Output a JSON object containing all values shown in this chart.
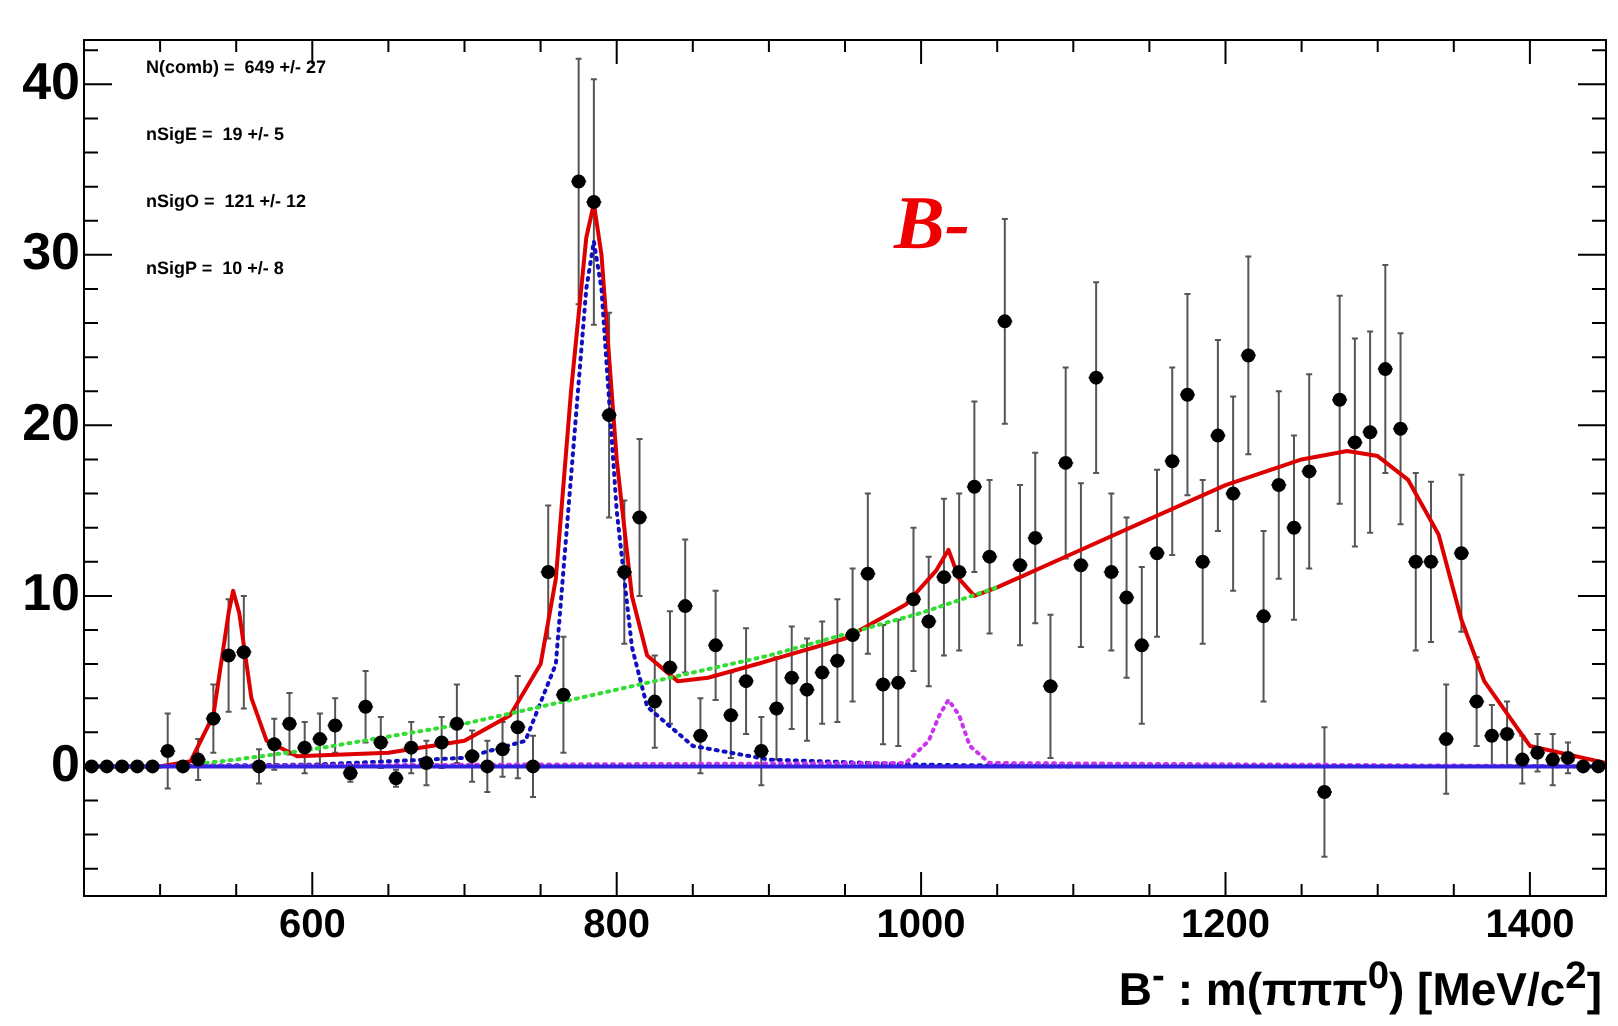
{
  "chart_data": {
    "type": "scatter",
    "xlabel": "B$^{-}$ : m(πππ$^{0}$) [MeV/c$^{2}$]",
    "annotations": [
      "N(comb) =  649 +/- 27",
      "nSigE =  19 +/- 5",
      "nSigO =  121 +/- 12",
      "nSigP =  10 +/- 8",
      "B-"
    ],
    "xlim": [
      450,
      1450
    ],
    "xticks": [
      {
        "value": 500,
        "label": null
      },
      {
        "value": 550,
        "label": null
      },
      600,
      {
        "value": 650,
        "label": null
      },
      {
        "value": 700,
        "label": null
      },
      {
        "value": 750,
        "label": null
      },
      800,
      {
        "value": 850,
        "label": null
      },
      {
        "value": 900,
        "label": null
      },
      {
        "value": 950,
        "label": null
      },
      1000,
      {
        "value": 1050,
        "label": null
      },
      {
        "value": 1100,
        "label": null
      },
      {
        "value": 1150,
        "label": null
      },
      1200,
      {
        "value": 1250,
        "label": null
      },
      {
        "value": 1300,
        "label": null
      },
      {
        "value": 1350,
        "label": null
      },
      1400
    ],
    "ylim": [
      -7.6,
      42.6
    ],
    "yticks": [
      {
        "value": -6,
        "label": null
      },
      {
        "value": -4,
        "label": null
      },
      {
        "value": -2,
        "label": null
      },
      0,
      {
        "value": 2,
        "label": null
      },
      {
        "value": 4,
        "label": null
      },
      {
        "value": 6,
        "label": null
      },
      {
        "value": 8,
        "label": null
      },
      10,
      {
        "value": 12,
        "label": null
      },
      {
        "value": 14,
        "label": null
      },
      {
        "value": 16,
        "label": null
      },
      {
        "value": 18,
        "label": null
      },
      20,
      {
        "value": 22,
        "label": null
      },
      {
        "value": 24,
        "label": null
      },
      {
        "value": 26,
        "label": null
      },
      {
        "value": 28,
        "label": null
      },
      30,
      {
        "value": 32,
        "label": null
      },
      {
        "value": 34,
        "label": null
      },
      {
        "value": 36,
        "label": null
      },
      {
        "value": 38,
        "label": null
      },
      40,
      {
        "value": 42,
        "label": null
      }
    ],
    "series": [
      {
        "type": "scatter",
        "color": "#000000",
        "marker": "circle",
        "x": [
          455,
          465,
          475,
          485,
          495,
          505,
          515,
          525,
          535,
          545,
          555,
          565,
          575,
          585,
          595,
          605,
          615,
          625,
          635,
          645,
          655,
          665,
          675,
          685,
          695,
          705,
          715,
          725,
          735,
          745,
          755,
          765,
          775,
          785,
          795,
          805,
          815,
          825,
          835,
          845,
          855,
          865,
          875,
          885,
          895,
          905,
          915,
          925,
          935,
          945,
          955,
          965,
          975,
          985,
          995,
          1005,
          1015,
          1025,
          1035,
          1045,
          1055,
          1065,
          1075,
          1085,
          1095,
          1105,
          1115,
          1125,
          1135,
          1145,
          1155,
          1165,
          1175,
          1185,
          1195,
          1205,
          1215,
          1225,
          1235,
          1245,
          1255,
          1265,
          1275,
          1285,
          1295,
          1305,
          1315,
          1325,
          1335,
          1345,
          1355,
          1365,
          1375,
          1385,
          1395,
          1405,
          1415,
          1425,
          1435,
          1445
        ],
        "values": [
          0,
          0,
          0,
          0,
          0,
          0.9,
          0,
          0.4,
          2.8,
          6.5,
          6.7,
          0,
          1.3,
          2.5,
          1.1,
          1.6,
          2.4,
          -0.4,
          3.5,
          1.4,
          -0.7,
          1.1,
          0.2,
          1.4,
          2.5,
          0.6,
          0,
          1.0,
          2.3,
          0,
          11.4,
          4.2,
          34.3,
          33.1,
          20.6,
          11.4,
          14.6,
          3.8,
          5.8,
          9.4,
          1.8,
          7.1,
          3.0,
          5.0,
          0.9,
          3.4,
          5.2,
          4.5,
          5.5,
          6.2,
          7.7,
          11.3,
          4.8,
          4.9,
          9.8,
          8.5,
          11.1,
          11.4,
          16.4,
          12.3,
          26.1,
          11.8,
          13.4,
          4.7,
          17.8,
          11.8,
          22.8,
          11.4,
          9.9,
          7.1,
          12.5,
          17.9,
          21.8,
          12.0,
          19.4,
          16.0,
          24.1,
          8.8,
          16.5,
          14.0,
          17.3,
          -1.5,
          21.5,
          19.0,
          19.6,
          23.3,
          19.8,
          12.0,
          12.0,
          1.6,
          12.5,
          3.8,
          1.8,
          1.9,
          0.4,
          0.8,
          0.4,
          0.5,
          0,
          0
        ],
        "errors": [
          null,
          null,
          null,
          null,
          null,
          2.2,
          null,
          1.2,
          2,
          3.3,
          3.3,
          1,
          1.5,
          1.8,
          1.5,
          1.5,
          1.6,
          0.5,
          2.1,
          1.5,
          0.5,
          1.5,
          1.3,
          1.5,
          2.3,
          1.5,
          1.5,
          1.6,
          3,
          1.8,
          3.9,
          3.4,
          7.2,
          7.2,
          6,
          4.2,
          4.6,
          2.7,
          3.3,
          3.9,
          2.2,
          3.2,
          2.5,
          3.1,
          2,
          3,
          3,
          3,
          3,
          3.6,
          3.9,
          4.7,
          3.5,
          3.7,
          4.2,
          3.8,
          4.6,
          4.6,
          5.0,
          4.5,
          6,
          4.7,
          5.0,
          4.2,
          5.6,
          4.8,
          5.6,
          4.6,
          4.7,
          4.6,
          4.9,
          5.5,
          5.9,
          4.8,
          5.6,
          5.7,
          5.8,
          5.0,
          5.5,
          5.4,
          5.7,
          3.8,
          6.1,
          6.1,
          5.9,
          6.1,
          5.6,
          5.2,
          4.7,
          3.2,
          4.6,
          2.6,
          1.8,
          1.9,
          1.4,
          1.1,
          1.5,
          0.9,
          null,
          null
        ],
        "xerrors": [
          5,
          5,
          5,
          5,
          5,
          5,
          5,
          5,
          5,
          5,
          5,
          5,
          5,
          5,
          5,
          5,
          5,
          5,
          5,
          5,
          5,
          5,
          5,
          5,
          5,
          5,
          5,
          5,
          5,
          5,
          5,
          5,
          5,
          5,
          5,
          5,
          5,
          5,
          5,
          5,
          5,
          5,
          5,
          5,
          5,
          5,
          5,
          5,
          5,
          5,
          5,
          5,
          5,
          5,
          5,
          5,
          5,
          5,
          5,
          5,
          5,
          5,
          5,
          5,
          5,
          5,
          5,
          5,
          5,
          5,
          5,
          5,
          5,
          5,
          5,
          5,
          5,
          5,
          5,
          5,
          5,
          5,
          5,
          5,
          5,
          5,
          5,
          5,
          5,
          5,
          5,
          5,
          5,
          5,
          5,
          5,
          5,
          5,
          5,
          5
        ]
      },
      {
        "type": "line",
        "color": "#3322dd",
        "line_style": "solid",
        "x": [
          450,
          1450
        ],
        "values": [
          0,
          0
        ]
      },
      {
        "type": "line",
        "color": "#cc33ee",
        "line_style": "dotted",
        "x": [
          450,
          990,
          1005,
          1012,
          1018,
          1025,
          1032,
          1045,
          1450
        ],
        "values": [
          0,
          0.2,
          1.5,
          3,
          3.9,
          3,
          1.2,
          0.2,
          0
        ]
      },
      {
        "type": "line",
        "color": "#33dd33",
        "line_style": "dotted",
        "x": [
          530,
          550,
          600,
          700,
          800,
          900,
          1000,
          1050
        ],
        "values": [
          0.2,
          0.4,
          1,
          2.5,
          4.5,
          6.5,
          9,
          10.5
        ]
      },
      {
        "type": "line",
        "color": "#1010c0",
        "line_style": "dotted",
        "x": [
          450,
          600,
          700,
          740,
          760,
          770,
          780,
          785,
          790,
          800,
          810,
          820,
          850,
          900,
          1000,
          1100
        ],
        "values": [
          0,
          0.1,
          0.5,
          1.5,
          6,
          17,
          28,
          30.8,
          28,
          15,
          7,
          3.5,
          1.2,
          0.4,
          0.1,
          0
        ]
      },
      {
        "type": "line",
        "color": "#dd0000",
        "line_style": "solid",
        "x": [
          450,
          500,
          520,
          535,
          545,
          548,
          552,
          560,
          570,
          590,
          650,
          700,
          730,
          750,
          760,
          770,
          780,
          785,
          790,
          800,
          810,
          820,
          840,
          860,
          900,
          950,
          990,
          1010,
          1018,
          1025,
          1035,
          1050,
          1100,
          1150,
          1200,
          1250,
          1280,
          1300,
          1320,
          1340,
          1355,
          1370,
          1400,
          1450
        ],
        "values": [
          0,
          0,
          0.3,
          3,
          9,
          10.3,
          9,
          4,
          1.5,
          0.6,
          0.8,
          1.5,
          3,
          6,
          11,
          22,
          31,
          33,
          30,
          18,
          10,
          6.5,
          5,
          5.2,
          6.2,
          7.5,
          9.5,
          11.5,
          12.7,
          11,
          10,
          10.5,
          12.5,
          14.5,
          16.5,
          18,
          18.5,
          18.2,
          16.8,
          13.6,
          8.6,
          5,
          1.2,
          0.2
        ]
      }
    ]
  }
}
